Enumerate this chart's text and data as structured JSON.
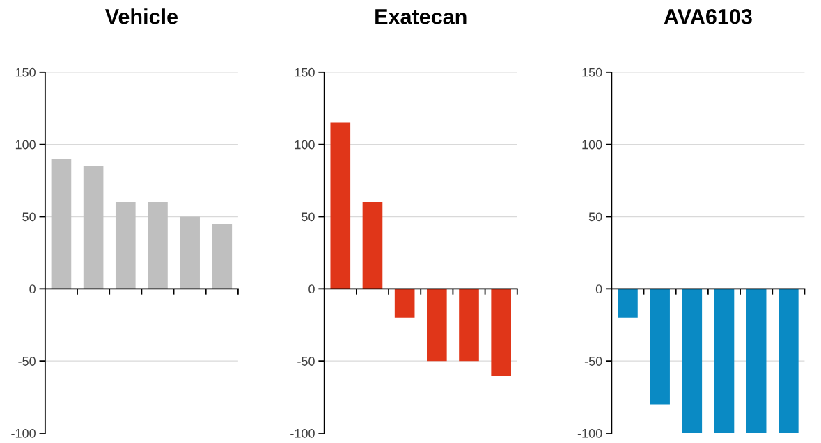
{
  "chart_data": [
    {
      "type": "bar",
      "title": "Vehicle",
      "categories": [
        null,
        null,
        null,
        null,
        null,
        null
      ],
      "values": [
        90,
        85,
        60,
        60,
        50,
        45
      ],
      "color": "#bfbfbf",
      "ylim": [
        -100,
        150
      ],
      "yticks": [
        -100,
        -50,
        0,
        50,
        100,
        150
      ],
      "grid": "y",
      "tick_labels": "y"
    },
    {
      "type": "bar",
      "title": "Exatecan",
      "categories": [
        null,
        null,
        null,
        null,
        null,
        null
      ],
      "values": [
        115,
        60,
        -20,
        -50,
        -50,
        -60
      ],
      "color": "#e03619",
      "ylim": [
        -100,
        150
      ],
      "yticks": [
        -100,
        -50,
        0,
        50,
        100,
        150
      ],
      "grid": "y",
      "tick_labels": "y"
    },
    {
      "type": "bar",
      "title": "AVA6103",
      "categories": [
        null,
        null,
        null,
        null,
        null,
        null
      ],
      "values": [
        -20,
        -80,
        -100,
        -100,
        -100,
        -100
      ],
      "color": "#0a8ac4",
      "ylim": [
        -100,
        150
      ],
      "yticks": [
        -100,
        -50,
        0,
        50,
        100,
        150
      ],
      "grid": "y",
      "tick_labels": "y"
    }
  ]
}
